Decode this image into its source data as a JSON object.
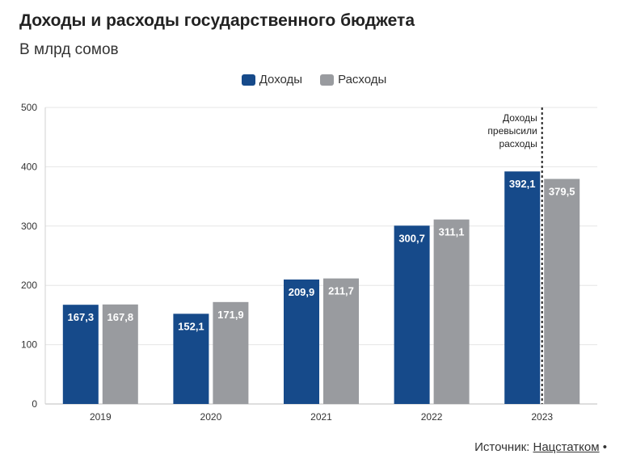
{
  "header": {
    "title": "Доходы и расходы государственного бюджета",
    "subtitle": "В млрд сомов"
  },
  "source": {
    "label": "Источник:",
    "link": "Нацстатком",
    "bullet": "•"
  },
  "colors": {
    "income": "#164a8a",
    "expense": "#999b9f"
  },
  "chart_data": {
    "type": "bar",
    "categories": [
      "2019",
      "2020",
      "2021",
      "2022",
      "2023"
    ],
    "series": [
      {
        "name": "Доходы",
        "values": [
          167.3,
          152.1,
          209.9,
          300.7,
          392.1
        ],
        "labels": [
          "167,3",
          "152,1",
          "209,9",
          "300,7",
          "392,1"
        ]
      },
      {
        "name": "Расходы",
        "values": [
          167.8,
          171.9,
          211.7,
          311.1,
          379.5
        ],
        "labels": [
          "167,8",
          "171,9",
          "211,7",
          "311,1",
          "379,5"
        ]
      }
    ],
    "ylim": [
      0,
      500
    ],
    "yticks": [
      "0",
      "100",
      "200",
      "300",
      "400",
      "500"
    ],
    "grid": true,
    "legend": "top-center",
    "annotation": {
      "lines": [
        "Доходы",
        "превысили",
        "расходы"
      ],
      "category": "2023"
    }
  }
}
